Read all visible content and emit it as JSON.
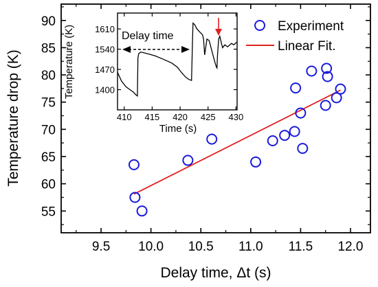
{
  "chart_data": [
    {
      "type": "scatter",
      "xlabel": "Delay time, Δt (s)",
      "ylabel": "Temperature drop (K)",
      "xlim": [
        9.1,
        12.2
      ],
      "ylim": [
        51,
        93
      ],
      "xticks": [
        9.5,
        10.0,
        10.5,
        11.0,
        11.5,
        12.0
      ],
      "xtick_labels": [
        "9.5",
        "10.0",
        "10.5",
        "11.0",
        "11.5",
        "12.0"
      ],
      "yticks": [
        55,
        60,
        65,
        70,
        75,
        80,
        85,
        90
      ],
      "ytick_labels": [
        "55",
        "60",
        "65",
        "70",
        "75",
        "80",
        "85",
        "90"
      ],
      "legend": {
        "position": "top-right",
        "entries": [
          "Experiment",
          "Linear Fit."
        ]
      },
      "series": [
        {
          "name": "Experiment",
          "marker": "open-circle",
          "color": "#1a1adb",
          "x": [
            9.83,
            9.84,
            9.91,
            10.37,
            10.61,
            11.05,
            11.22,
            11.34,
            11.44,
            11.45,
            11.5,
            11.52,
            11.61,
            11.75,
            11.76,
            11.77,
            11.86,
            11.9
          ],
          "y": [
            63.5,
            57.5,
            55.0,
            64.3,
            68.2,
            64.0,
            67.9,
            68.9,
            69.6,
            77.6,
            73.0,
            66.5,
            80.7,
            74.4,
            81.2,
            79.7,
            75.8,
            77.4
          ]
        },
        {
          "name": "Linear Fit.",
          "type": "line",
          "color": "#e02020",
          "x": [
            9.83,
            11.9
          ],
          "y": [
            58.1,
            77.2
          ]
        }
      ]
    },
    {
      "type": "line",
      "xlabel": "Time (s)",
      "ylabel": "Temperature (K)",
      "xlim": [
        408.8,
        430.2
      ],
      "ylim": [
        1330,
        1665
      ],
      "xticks": [
        410,
        415,
        420,
        425,
        430
      ],
      "xtick_labels": [
        "410",
        "415",
        "420",
        "425",
        "430"
      ],
      "yticks": [
        1400,
        1470,
        1540,
        1610
      ],
      "ytick_labels": [
        "1400",
        "1470",
        "1540",
        "1610"
      ],
      "annotation": "Delay time",
      "series": [
        {
          "color": "#000000",
          "x": [
            408.8,
            409.5,
            410.3,
            411.0,
            411.6,
            412.1,
            412.35,
            412.45,
            412.6,
            413.0,
            414.0,
            415.5,
            417.0,
            418.5,
            419.5,
            420.3,
            421.0,
            421.6,
            422.05,
            422.2,
            422.3,
            422.6,
            423.0,
            423.5,
            424.0,
            424.2,
            424.4,
            424.8,
            425.2,
            425.6,
            426.0,
            426.3,
            426.5,
            426.6,
            426.7,
            426.9,
            427.1,
            427.4,
            427.6,
            428.0,
            428.5,
            428.9,
            429.2,
            429.6,
            430.2
          ],
          "y": [
            1460,
            1430,
            1410,
            1400,
            1392,
            1382,
            1378,
            1510,
            1525,
            1530,
            1525,
            1517,
            1505,
            1492,
            1478,
            1458,
            1443,
            1435,
            1432,
            1560,
            1630,
            1625,
            1610,
            1600,
            1590,
            1575,
            1520,
            1575,
            1570,
            1540,
            1510,
            1490,
            1478,
            1475,
            1520,
            1575,
            1585,
            1560,
            1545,
            1555,
            1548,
            1555,
            1560,
            1555,
            1565
          ]
        }
      ]
    }
  ]
}
